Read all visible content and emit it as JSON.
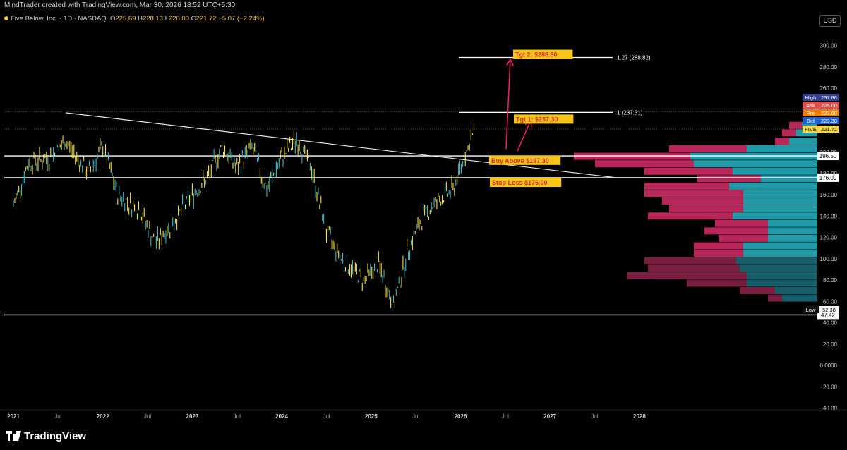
{
  "header": {
    "credit": "MindTrader created with TradingView.com, Mar 30, 2026 18:52 UTC+5:30"
  },
  "legend": {
    "symbol": "Five Below, Inc. · 1D · NASDAQ",
    "open_label": "O",
    "open": "225.69",
    "high_label": "H",
    "high": "228.13",
    "low_label": "L",
    "low": "220.00",
    "close_label": "C",
    "close": "221.72",
    "change": "−5.07 (−2.24%)"
  },
  "currency_button": "USD",
  "brand": "TradingView",
  "colors": {
    "background": "#000000",
    "candle": "#f2e04a",
    "candle_alt": "#3bb8c4",
    "arrow": "#e91e63",
    "label_bg": "#f5c518",
    "label_text": "#d32f2f",
    "vp_up": "#1f9aa6",
    "vp_down": "#b8265a"
  },
  "chart_data": {
    "type": "line",
    "title": "Five Below, Inc. · 1D · NASDAQ",
    "y_axis": {
      "ticks": [
        "300.00",
        "280.00",
        "260.00",
        "240.00",
        "220.00",
        "200.00",
        "180.00",
        "160.00",
        "140.00",
        "120.00",
        "100.00",
        "80.00",
        "60.00",
        "40.00",
        "20.00",
        "0.0000",
        "−20.00",
        "−40.00"
      ],
      "range": [
        -40,
        310
      ]
    },
    "x_axis": {
      "ticks": [
        "2021",
        "Jul",
        "2022",
        "Jul",
        "2023",
        "Jul",
        "2024",
        "Jul",
        "2025",
        "Jul",
        "2026",
        "Jul",
        "2027",
        "Jul",
        "2028"
      ]
    },
    "price_path": {
      "dates": [
        "2021-01",
        "2021-03",
        "2021-06",
        "2021-08",
        "2021-11",
        "2022-01",
        "2022-03",
        "2022-06",
        "2022-08",
        "2022-10",
        "2023-01",
        "2023-03",
        "2023-05",
        "2023-07",
        "2023-09",
        "2023-11",
        "2024-01",
        "2024-03",
        "2024-05",
        "2024-07",
        "2024-09",
        "2024-12",
        "2025-02",
        "2025-04",
        "2025-06",
        "2025-08",
        "2025-10",
        "2025-12",
        "2026-02",
        "2026-03"
      ],
      "close": [
        150,
        190,
        195,
        210,
        180,
        205,
        160,
        145,
        115,
        130,
        160,
        175,
        205,
        185,
        205,
        165,
        195,
        212,
        185,
        125,
        100,
        80,
        95,
        55,
        110,
        140,
        155,
        165,
        205,
        221.72
      ]
    },
    "horizontal_levels": [
      {
        "price": 196.5,
        "label": "196.50"
      },
      {
        "price": 176.09,
        "label": "176.09"
      },
      {
        "price": 47.42,
        "label": "47.42"
      }
    ],
    "trendline": {
      "from_date": "2021-08",
      "from_price": 237,
      "to_date": "2027-10",
      "to_price": 176
    },
    "fib_levels": [
      {
        "ratio": "1.27",
        "price": "288.82",
        "text": "1.27 (288.82)"
      },
      {
        "ratio": "1",
        "price": "237.31",
        "text": "1 (237.31)"
      }
    ],
    "annotations": [
      {
        "text": "Tgt 2: $288.80",
        "price": 288.8
      },
      {
        "text": "Tgt 1: $237.30",
        "price": 237.3
      },
      {
        "text": "Buy Above $197.30",
        "price": 197.3
      },
      {
        "text": "Stop Loss $176.00",
        "price": 176.0
      }
    ],
    "price_tags": [
      {
        "name": "High",
        "value": "237.86",
        "color": "#2f3e8f"
      },
      {
        "name": "Ask",
        "value": "225.00",
        "color": "#e0504a"
      },
      {
        "name": "Pre",
        "value": "223.60",
        "color": "#f57c00"
      },
      {
        "name": "Bid",
        "value": "223.30",
        "color": "#1e63d6"
      },
      {
        "name": "FIVE",
        "value": "221.72",
        "color": "#f7d548"
      },
      {
        "name": "Low",
        "value": "52.38",
        "color": "#0a0a0a"
      }
    ],
    "volume_profile": [
      {
        "price": 225,
        "up": 22,
        "down": 18
      },
      {
        "price": 218,
        "up": 30,
        "down": 20
      },
      {
        "price": 210,
        "up": 40,
        "down": 20
      },
      {
        "price": 203,
        "up": 100,
        "down": 110
      },
      {
        "price": 196,
        "up": 180,
        "down": 165
      },
      {
        "price": 189,
        "up": 175,
        "down": 140
      },
      {
        "price": 182,
        "up": 120,
        "down": 125
      },
      {
        "price": 175,
        "up": 80,
        "down": 90
      },
      {
        "price": 168,
        "up": 125,
        "down": 120
      },
      {
        "price": 161,
        "up": 105,
        "down": 140
      },
      {
        "price": 154,
        "up": 105,
        "down": 115
      },
      {
        "price": 147,
        "up": 105,
        "down": 105
      },
      {
        "price": 140,
        "up": 120,
        "down": 120
      },
      {
        "price": 133,
        "up": 70,
        "down": 75
      },
      {
        "price": 126,
        "up": 70,
        "down": 90
      },
      {
        "price": 119,
        "up": 70,
        "down": 70
      },
      {
        "price": 112,
        "up": 105,
        "down": 70
      },
      {
        "price": 105,
        "up": 105,
        "down": 70
      },
      {
        "price": 98,
        "up": 115,
        "down": 130
      },
      {
        "price": 91,
        "up": 110,
        "down": 130
      },
      {
        "price": 84,
        "up": 100,
        "down": 170
      },
      {
        "price": 77,
        "up": 100,
        "down": 85
      },
      {
        "price": 70,
        "up": 60,
        "down": 50
      },
      {
        "price": 63,
        "up": 50,
        "down": 20
      }
    ]
  }
}
